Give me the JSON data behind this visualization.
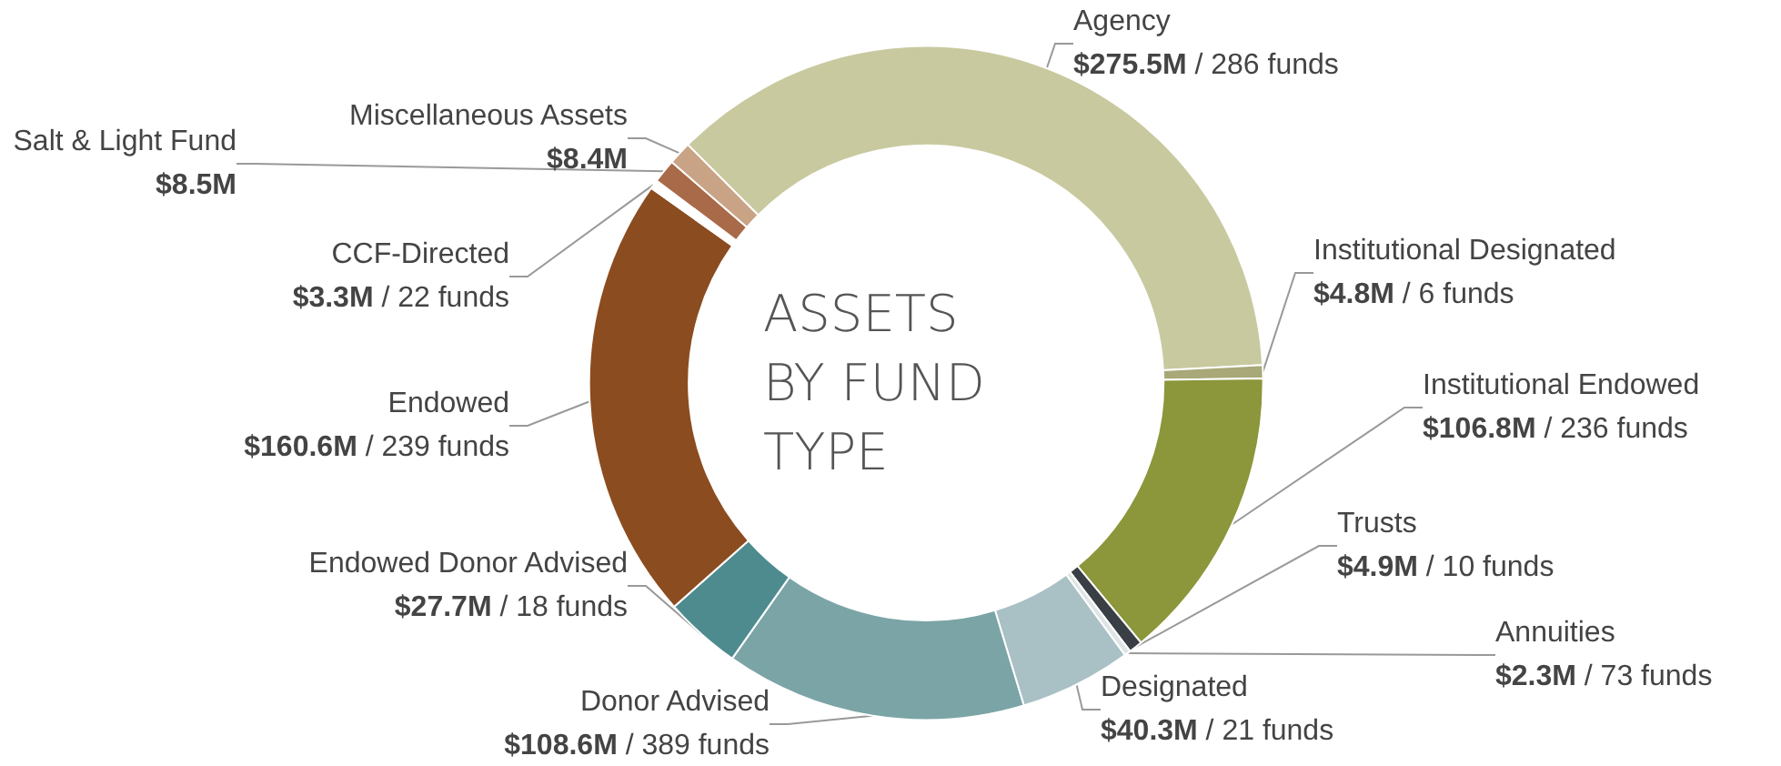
{
  "chart_data": {
    "type": "donut",
    "title": "ASSETS BY FUND TYPE",
    "categories": [
      "Agency",
      "Institutional Designated",
      "Institutional Endowed",
      "Trusts",
      "Annuities",
      "Designated",
      "Donor Advised",
      "Endowed Donor Advised",
      "Endowed",
      "CCF-Directed",
      "Salt & Light Fund",
      "Miscellaneous Assets"
    ],
    "values": [
      275.5,
      4.8,
      106.8,
      4.9,
      2.3,
      40.3,
      108.6,
      27.7,
      160.6,
      3.3,
      8.5,
      8.4
    ],
    "value_labels": [
      "$275.5M",
      "$4.8M",
      "$106.8M",
      "$4.9M",
      "$2.3M",
      "$40.3M",
      "$108.6M",
      "$27.7M",
      "$160.6M",
      "$3.3M",
      "$8.5M",
      "$8.4M"
    ],
    "annotations": [
      "/ 286 funds",
      "/ 6 funds",
      "/ 236 funds",
      "/ 10 funds",
      "/ 73 funds",
      "/ 21 funds",
      "/ 389 funds",
      "/ 18 funds",
      "/ 239 funds",
      "/ 22 funds"
    ],
    "colors": [
      "#c9c9a0",
      "#a8a878",
      "#8c963a",
      "#3a3f45",
      "#dfe4e4",
      "#a9c0c5",
      "#7ba4a6",
      "#4e8b8f",
      "#8b4c20",
      "#ffffff",
      "#a86a48",
      "#c9a385"
    ],
    "legend": false
  }
}
